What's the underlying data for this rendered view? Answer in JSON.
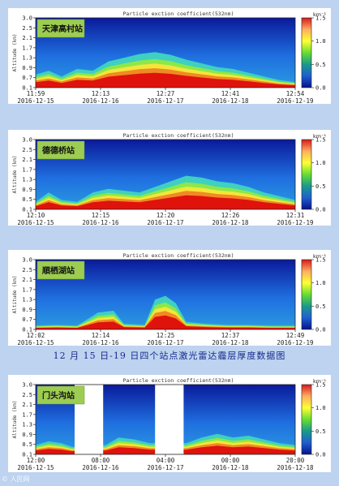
{
  "caption": "12 月 15 日-19 日四个站点激光雷达霾层厚度数据图",
  "watermark": "© 人民网",
  "colorbar": {
    "unit": "km⁻¹",
    "ticks": [
      "1.5",
      "1.0",
      "0.5",
      "0.0"
    ],
    "min": 0.0,
    "max": 1.5,
    "colors": [
      "#d7191c",
      "#fdae61",
      "#ffff33",
      "#66dd33",
      "#1a9a8a",
      "#1f5fd0",
      "#07128a"
    ]
  },
  "chart_data": [
    {
      "type": "heatmap",
      "station": "天津高村站",
      "title": "Particle exction coefficient(532nm)",
      "ylabel": "Altitude (km)",
      "ylim": [
        0.1,
        3.0
      ],
      "yticks": [
        "3.0",
        "2.5",
        "2.1",
        "1.7",
        "1.3",
        "0.9",
        "0.7",
        "0.1"
      ],
      "xticks": [
        "11:59",
        "12:13",
        "12:27",
        "12:41",
        "12:54"
      ],
      "dates": [
        "2016-12-15",
        "2016-12-16",
        "2016-12-17",
        "2016-12-18",
        "2016-12-19"
      ],
      "gaps": [],
      "haze_profile": [
        {
          "t": 0.0,
          "h": 0.35
        },
        {
          "t": 0.05,
          "h": 0.45
        },
        {
          "t": 0.1,
          "h": 0.3
        },
        {
          "t": 0.16,
          "h": 0.5
        },
        {
          "t": 0.22,
          "h": 0.45
        },
        {
          "t": 0.28,
          "h": 0.7
        },
        {
          "t": 0.34,
          "h": 0.8
        },
        {
          "t": 0.4,
          "h": 0.9
        },
        {
          "t": 0.46,
          "h": 0.95
        },
        {
          "t": 0.52,
          "h": 0.88
        },
        {
          "t": 0.58,
          "h": 0.75
        },
        {
          "t": 0.64,
          "h": 0.65
        },
        {
          "t": 0.7,
          "h": 0.55
        },
        {
          "t": 0.76,
          "h": 0.5
        },
        {
          "t": 0.82,
          "h": 0.4
        },
        {
          "t": 0.88,
          "h": 0.3
        },
        {
          "t": 0.94,
          "h": 0.2
        },
        {
          "t": 1.0,
          "h": 0.15
        }
      ]
    },
    {
      "type": "heatmap",
      "station": "德德桥站",
      "title": "Particle exction coefficient(532nm)",
      "ylabel": "Altitude (km)",
      "ylim": [
        0.1,
        3.0
      ],
      "yticks": [
        "3.0",
        "2.5",
        "2.1",
        "1.7",
        "1.3",
        "0.9",
        "0.5",
        "0.1"
      ],
      "xticks": [
        "12:10",
        "12:15",
        "12:20",
        "12:26",
        "12:31"
      ],
      "dates": [
        "2016-12-15",
        "2016-12-16",
        "2016-12-17",
        "2016-12-18",
        "2016-12-19"
      ],
      "gaps": [],
      "haze_profile": [
        {
          "t": 0.0,
          "h": 0.2
        },
        {
          "t": 0.05,
          "h": 0.45
        },
        {
          "t": 0.1,
          "h": 0.25
        },
        {
          "t": 0.16,
          "h": 0.2
        },
        {
          "t": 0.22,
          "h": 0.45
        },
        {
          "t": 0.28,
          "h": 0.55
        },
        {
          "t": 0.34,
          "h": 0.5
        },
        {
          "t": 0.4,
          "h": 0.45
        },
        {
          "t": 0.46,
          "h": 0.6
        },
        {
          "t": 0.52,
          "h": 0.75
        },
        {
          "t": 0.58,
          "h": 0.9
        },
        {
          "t": 0.64,
          "h": 0.85
        },
        {
          "t": 0.7,
          "h": 0.75
        },
        {
          "t": 0.76,
          "h": 0.7
        },
        {
          "t": 0.82,
          "h": 0.6
        },
        {
          "t": 0.88,
          "h": 0.45
        },
        {
          "t": 0.94,
          "h": 0.35
        },
        {
          "t": 1.0,
          "h": 0.25
        }
      ]
    },
    {
      "type": "heatmap",
      "station": "順栖湖站",
      "title": "Particle exction coefficient(532nm)",
      "ylabel": "Altitude (km)",
      "ylim": [
        0.1,
        3.0
      ],
      "yticks": [
        "3.0",
        "2.5",
        "2.1",
        "1.7",
        "1.3",
        "0.9",
        "0.7",
        "0.1"
      ],
      "xticks": [
        "12:02",
        "12:14",
        "12:25",
        "12:37",
        "12:49"
      ],
      "dates": [
        "2016-12-15",
        "2016-12-16",
        "2016-12-17",
        "2016-12-18",
        "2016-12-19"
      ],
      "gaps": [],
      "haze_profile": [
        {
          "t": 0.0,
          "h": 0.1
        },
        {
          "t": 0.08,
          "h": 0.12
        },
        {
          "t": 0.16,
          "h": 0.1
        },
        {
          "t": 0.24,
          "h": 0.45
        },
        {
          "t": 0.3,
          "h": 0.5
        },
        {
          "t": 0.34,
          "h": 0.15
        },
        {
          "t": 0.42,
          "h": 0.12
        },
        {
          "t": 0.46,
          "h": 0.8
        },
        {
          "t": 0.5,
          "h": 0.9
        },
        {
          "t": 0.54,
          "h": 0.7
        },
        {
          "t": 0.58,
          "h": 0.2
        },
        {
          "t": 0.66,
          "h": 0.15
        },
        {
          "t": 0.74,
          "h": 0.12
        },
        {
          "t": 0.82,
          "h": 0.12
        },
        {
          "t": 0.9,
          "h": 0.1
        },
        {
          "t": 1.0,
          "h": 0.1
        }
      ]
    },
    {
      "type": "heatmap",
      "station": "门头沟站",
      "title": "Particle exction coefficient(532nm)",
      "ylabel": "Altitude (km)",
      "ylim": [
        0.1,
        3.0
      ],
      "yticks": [
        "3.0",
        "2.5",
        "2.1",
        "1.7",
        "1.3",
        "0.9",
        "0.5",
        "0.1"
      ],
      "xticks": [
        "12:00",
        "08:00",
        "04:00",
        "00:00",
        "20:00"
      ],
      "dates": [
        "2016-12-15",
        "2016-12-16",
        "2016-12-17",
        "2016-12-18",
        "2016-12-18"
      ],
      "gaps": [
        [
          0.15,
          0.26
        ],
        [
          0.46,
          0.57
        ]
      ],
      "haze_profile": [
        {
          "t": 0.0,
          "h": 0.25
        },
        {
          "t": 0.05,
          "h": 0.35
        },
        {
          "t": 0.1,
          "h": 0.3
        },
        {
          "t": 0.14,
          "h": 0.2
        },
        {
          "t": 0.27,
          "h": 0.25
        },
        {
          "t": 0.32,
          "h": 0.45
        },
        {
          "t": 0.38,
          "h": 0.4
        },
        {
          "t": 0.44,
          "h": 0.3
        },
        {
          "t": 0.58,
          "h": 0.3
        },
        {
          "t": 0.64,
          "h": 0.45
        },
        {
          "t": 0.7,
          "h": 0.55
        },
        {
          "t": 0.76,
          "h": 0.45
        },
        {
          "t": 0.82,
          "h": 0.5
        },
        {
          "t": 0.88,
          "h": 0.4
        },
        {
          "t": 0.94,
          "h": 0.3
        },
        {
          "t": 1.0,
          "h": 0.25
        }
      ]
    }
  ]
}
